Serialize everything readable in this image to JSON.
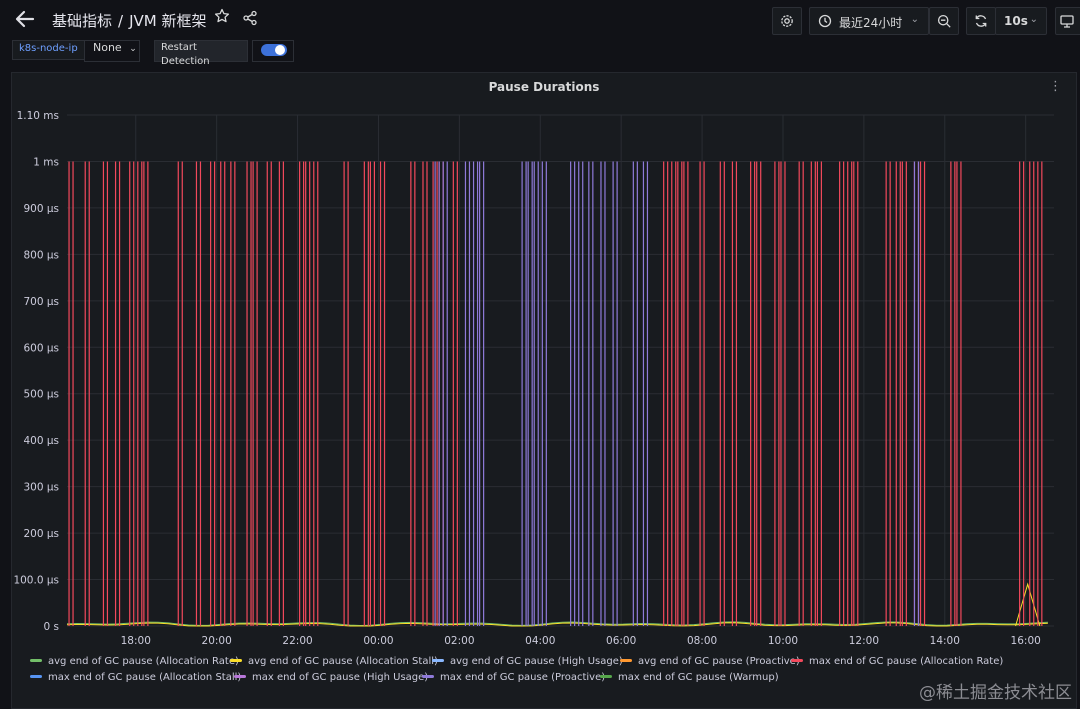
{
  "header": {
    "back_icon": "arrow-left-icon",
    "folder": "基础指标",
    "separator": "/",
    "dashboard_title": "JVM 新框架",
    "star_icon": "star-icon",
    "share_icon": "share-icon",
    "settings_icon": "gear-icon",
    "time_range_icon": "clock-icon",
    "time_range": "最近24小时",
    "zoom_icon": "zoom-out-icon",
    "refresh_icon": "refresh-icon",
    "refresh_interval": "10s",
    "tv_icon": "monitor-icon"
  },
  "variables": {
    "label": "k8s-node-ip",
    "value": "None",
    "restart_label": "Restart Detection",
    "restart_enabled": true
  },
  "panel": {
    "title": "Pause Durations",
    "menu_icon": "kebab-menu-icon"
  },
  "watermark": "@稀土掘金技术社区",
  "chart_data": {
    "type": "line",
    "title": "Pause Durations",
    "y_ticks": [
      "1.10 ms",
      "1 ms",
      "900 µs",
      "800 µs",
      "700 µs",
      "600 µs",
      "500 µs",
      "400 µs",
      "300 µs",
      "200 µs",
      "100.0 µs",
      "0 s"
    ],
    "x_ticks": [
      "18:00",
      "20:00",
      "22:00",
      "00:00",
      "02:00",
      "04:00",
      "06:00",
      "08:00",
      "10:00",
      "12:00",
      "14:00",
      "16:00"
    ],
    "ylim_us": [
      0,
      1100
    ],
    "grid": true,
    "legend_placement": "bottom",
    "series": [
      {
        "name": "avg end of GC pause (Allocation Rate)",
        "color": "#73bf69",
        "spikes_hours_from_start": [],
        "baseline_us": 5
      },
      {
        "name": "avg end of GC pause (Allocation Stall)",
        "color": "#fade2a",
        "spikes_hours_from_start": [],
        "baseline_us": 3,
        "bump_us": 90
      },
      {
        "name": "avg end of GC pause (High Usage)",
        "color": "#8ab8ff",
        "spikes_hours_from_start": []
      },
      {
        "name": "avg end of GC pause (Proactive)",
        "color": "#ff9830",
        "spikes_hours_from_start": []
      },
      {
        "name": "max end of GC pause (Allocation Rate)",
        "color": "#f2495c",
        "spike_value_us": 1000,
        "spikes_hours_from_start": [
          0.1,
          0.5,
          0.95,
          1.25,
          1.6,
          1.8,
          1.95,
          2.8,
          3.25,
          3.6,
          3.85,
          4.1,
          4.5,
          4.65,
          5.0,
          5.3,
          5.8,
          5.95,
          6.15,
          6.9,
          7.4,
          7.55,
          7.8,
          8.55,
          8.85,
          9.1,
          9.25,
          9.6,
          14.8,
          15.0,
          15.15,
          15.3,
          15.7,
          16.2,
          16.5,
          16.95,
          17.1,
          17.55,
          17.7,
          18.15,
          18.45,
          18.6,
          19.15,
          19.35,
          19.5,
          20.3,
          20.55,
          20.7,
          21.0,
          21.15,
          21.9,
          22.05,
          23.6,
          23.85,
          24.05
        ]
      },
      {
        "name": "max end of GC pause (Allocation Stall)",
        "color": "#5794f2",
        "spikes_hours_from_start": []
      },
      {
        "name": "max end of GC pause (High Usage)",
        "color": "#b877d9",
        "spikes_hours_from_start": []
      },
      {
        "name": "max end of GC pause (Proactive)",
        "color": "#8f7ad9",
        "spike_value_us": 1000,
        "spikes_hours_from_start": [
          9.15,
          9.35,
          9.9,
          10.1,
          10.25,
          11.3,
          11.45,
          11.6,
          11.8,
          12.5,
          12.7,
          12.95,
          13.25,
          13.55,
          14.05,
          14.3,
          21.0
        ]
      },
      {
        "name": "max end of GC pause (Warmup)",
        "color": "#56a64b",
        "spikes_hours_from_start": []
      }
    ]
  }
}
